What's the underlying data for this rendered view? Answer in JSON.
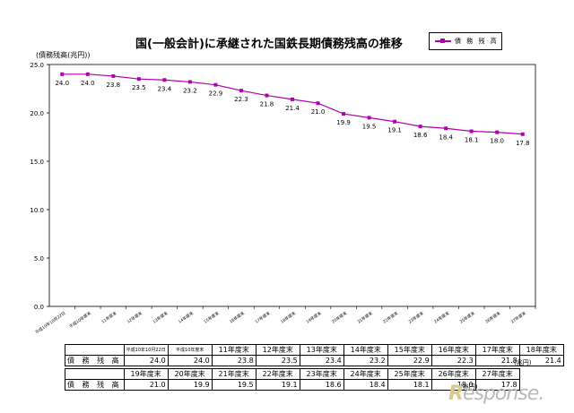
{
  "title": "国(一般会計)に承継された国鉄長期債務残高の推移",
  "legend_label": "債 務 残 高",
  "unit_note": "(兆円)",
  "colors": {
    "series": "#b000b0",
    "axis": "#000000"
  },
  "chart_data": {
    "type": "line",
    "ylabel": "(債務残高(兆円))",
    "ylim": [
      0,
      25
    ],
    "yticks": [
      "0.0",
      "5.0",
      "10.0",
      "15.0",
      "20.0",
      "25.0"
    ],
    "categories": [
      "平成10年10月22日",
      "平成10年度末",
      "11年度末",
      "12年度末",
      "13年度末",
      "14年度末",
      "15年度末",
      "16年度末",
      "17年度末",
      "18年度末",
      "19年度末",
      "20年度末",
      "21年度末",
      "22年度末",
      "23年度末",
      "24年度末",
      "25年度末",
      "26年度末",
      "27年度末"
    ],
    "series": [
      {
        "name": "債 務 残 高",
        "values": [
          24.0,
          24.0,
          23.8,
          23.5,
          23.4,
          23.2,
          22.9,
          22.3,
          21.8,
          21.4,
          21.0,
          19.9,
          19.5,
          19.1,
          18.6,
          18.4,
          18.1,
          18.0,
          17.8
        ]
      }
    ],
    "grid": false,
    "legend_position": "top-right"
  },
  "table": {
    "row_label": "債 務 残 高",
    "row1_headers": [
      "平成10年10月22日",
      "平成10年度末",
      "11年度末",
      "12年度末",
      "13年度末",
      "14年度末",
      "15年度末",
      "16年度末",
      "17年度末",
      "18年度末"
    ],
    "row1_values": [
      "24.0",
      "24.0",
      "23.8",
      "23.5",
      "23.4",
      "23.2",
      "22.9",
      "22.3",
      "21.8",
      "21.4"
    ],
    "row2_headers": [
      "19年度末",
      "20年度末",
      "21年度末",
      "22年度末",
      "23年度末",
      "24年度末",
      "25年度末",
      "26年度末",
      "27年度末"
    ],
    "row2_values": [
      "21.0",
      "19.9",
      "19.5",
      "19.1",
      "18.6",
      "18.4",
      "18.1",
      "18.0",
      "17.8"
    ],
    "unit": "(兆円)"
  },
  "watermark": {
    "initial": "R",
    "rest": "esponse."
  }
}
